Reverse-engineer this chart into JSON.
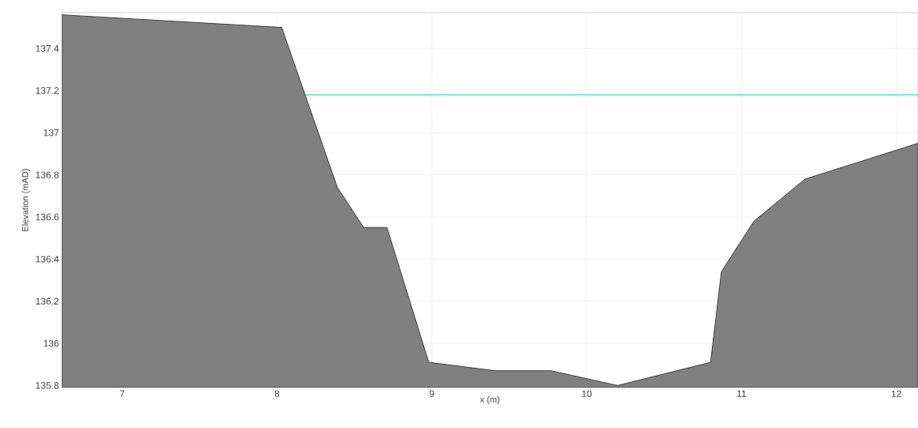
{
  "chart_data": {
    "type": "area",
    "xlabel": "x (m)",
    "ylabel": "Elevation (mAD)",
    "xlim": [
      6.61,
      12.14
    ],
    "ylim": [
      135.79,
      137.57
    ],
    "xticks": [
      7,
      8,
      9,
      10,
      11,
      12
    ],
    "yticks": [
      135.8,
      136,
      136.2,
      136.4,
      136.6,
      136.8,
      137,
      137.2,
      137.4
    ],
    "grid": true,
    "series": [
      {
        "color": "#808080",
        "x": [
          6.61,
          8.03,
          8.39,
          8.56,
          8.71,
          8.98,
          9.41,
          9.77,
          10.2,
          10.8,
          10.87,
          11.08,
          11.41,
          12.14
        ],
        "values": [
          137.56,
          137.5,
          136.74,
          136.55,
          136.55,
          135.91,
          135.87,
          135.87,
          135.8,
          135.91,
          136.34,
          136.58,
          136.78,
          136.95
        ]
      }
    ],
    "ref_lines": [
      {
        "axis": "y",
        "value": 137.18,
        "color": "#5ce6d6"
      }
    ]
  }
}
